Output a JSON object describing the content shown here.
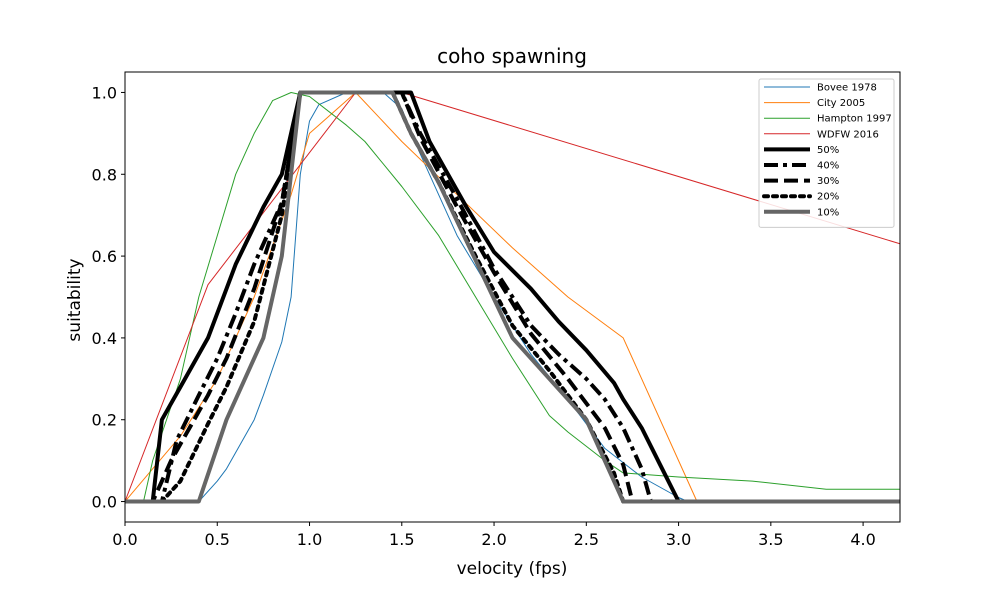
{
  "chart_data": {
    "type": "line",
    "title": "coho spawning",
    "xlabel": "velocity (fps)",
    "ylabel": "suitability",
    "xlim": [
      0,
      4.2
    ],
    "ylim": [
      -0.05,
      1.05
    ],
    "xticks": [
      0.0,
      0.5,
      1.0,
      1.5,
      2.0,
      2.5,
      3.0,
      3.5,
      4.0
    ],
    "xtick_labels": [
      "0.0",
      "0.5",
      "1.0",
      "1.5",
      "2.0",
      "2.5",
      "3.0",
      "3.5",
      "4.0"
    ],
    "yticks": [
      0.0,
      0.2,
      0.4,
      0.6,
      0.8,
      1.0
    ],
    "ytick_labels": [
      "0.0",
      "0.2",
      "0.4",
      "0.6",
      "0.8",
      "1.0"
    ],
    "grid": false,
    "legend_position": "top-right",
    "series": [
      {
        "name": "Bovee 1978",
        "color": "#1f77b4",
        "style": "solid",
        "width": "thin",
        "points": [
          [
            0,
            0
          ],
          [
            0.4,
            0
          ],
          [
            0.5,
            0.05
          ],
          [
            0.55,
            0.08
          ],
          [
            0.7,
            0.2
          ],
          [
            0.75,
            0.26
          ],
          [
            0.85,
            0.39
          ],
          [
            0.9,
            0.5
          ],
          [
            0.95,
            0.8
          ],
          [
            1.0,
            0.93
          ],
          [
            1.05,
            0.97
          ],
          [
            1.2,
            1.0
          ],
          [
            1.4,
            1.0
          ],
          [
            1.5,
            0.96
          ],
          [
            1.6,
            0.85
          ],
          [
            1.8,
            0.65
          ],
          [
            2.0,
            0.5
          ],
          [
            2.2,
            0.36
          ],
          [
            2.4,
            0.25
          ],
          [
            2.6,
            0.13
          ],
          [
            2.8,
            0.06
          ],
          [
            3.0,
            0.01
          ],
          [
            3.05,
            0
          ],
          [
            4.2,
            0
          ]
        ]
      },
      {
        "name": "City 2005",
        "color": "#ff7f0e",
        "style": "solid",
        "width": "thin",
        "points": [
          [
            0,
            0
          ],
          [
            0.3,
            0.16
          ],
          [
            0.5,
            0.3
          ],
          [
            0.7,
            0.5
          ],
          [
            0.9,
            0.75
          ],
          [
            1.0,
            0.9
          ],
          [
            1.25,
            1.0
          ],
          [
            1.5,
            0.88
          ],
          [
            1.8,
            0.75
          ],
          [
            2.1,
            0.62
          ],
          [
            2.4,
            0.5
          ],
          [
            2.7,
            0.4
          ],
          [
            3.1,
            0
          ],
          [
            4.2,
            0
          ]
        ]
      },
      {
        "name": "Hampton 1997",
        "color": "#2ca02c",
        "style": "solid",
        "width": "thin",
        "points": [
          [
            0,
            0
          ],
          [
            0.1,
            0
          ],
          [
            0.15,
            0.1
          ],
          [
            0.3,
            0.3
          ],
          [
            0.4,
            0.5
          ],
          [
            0.5,
            0.65
          ],
          [
            0.6,
            0.8
          ],
          [
            0.7,
            0.9
          ],
          [
            0.8,
            0.98
          ],
          [
            0.9,
            1.0
          ],
          [
            1.0,
            0.99
          ],
          [
            1.2,
            0.92
          ],
          [
            1.3,
            0.88
          ],
          [
            1.5,
            0.77
          ],
          [
            1.7,
            0.65
          ],
          [
            1.9,
            0.5
          ],
          [
            2.1,
            0.35
          ],
          [
            2.3,
            0.21
          ],
          [
            2.4,
            0.17
          ],
          [
            2.6,
            0.1
          ],
          [
            2.7,
            0.07
          ],
          [
            3.0,
            0.06
          ],
          [
            3.4,
            0.05
          ],
          [
            3.8,
            0.03
          ],
          [
            4.2,
            0.03
          ]
        ]
      },
      {
        "name": "WDFW 2016",
        "color": "#d62728",
        "style": "solid",
        "width": "thin",
        "points": [
          [
            0,
            0
          ],
          [
            0.45,
            0.53
          ],
          [
            1.25,
            1.0
          ],
          [
            1.5,
            1.0
          ],
          [
            4.2,
            0.63
          ]
        ]
      },
      {
        "name": "50%",
        "color": "#000000",
        "style": "solid",
        "width": "thick",
        "points": [
          [
            0,
            0
          ],
          [
            0.15,
            0
          ],
          [
            0.2,
            0.2
          ],
          [
            0.3,
            0.28
          ],
          [
            0.45,
            0.4
          ],
          [
            0.6,
            0.58
          ],
          [
            0.75,
            0.72
          ],
          [
            0.85,
            0.8
          ],
          [
            0.95,
            1.0
          ],
          [
            1.55,
            1.0
          ],
          [
            1.65,
            0.88
          ],
          [
            1.85,
            0.72
          ],
          [
            2.0,
            0.61
          ],
          [
            2.2,
            0.52
          ],
          [
            2.35,
            0.44
          ],
          [
            2.5,
            0.37
          ],
          [
            2.65,
            0.29
          ],
          [
            2.7,
            0.25
          ],
          [
            2.8,
            0.18
          ],
          [
            2.9,
            0.09
          ],
          [
            3.0,
            0
          ],
          [
            4.2,
            0
          ]
        ]
      },
      {
        "name": "40%",
        "color": "#000000",
        "style": "dashdot",
        "width": "thick",
        "points": [
          [
            0,
            0
          ],
          [
            0.2,
            0
          ],
          [
            0.28,
            0.15
          ],
          [
            0.4,
            0.26
          ],
          [
            0.5,
            0.35
          ],
          [
            0.6,
            0.46
          ],
          [
            0.7,
            0.58
          ],
          [
            0.85,
            0.73
          ],
          [
            0.95,
            1.0
          ],
          [
            1.5,
            1.0
          ],
          [
            1.6,
            0.9
          ],
          [
            1.8,
            0.74
          ],
          [
            2.0,
            0.57
          ],
          [
            2.2,
            0.43
          ],
          [
            2.35,
            0.36
          ],
          [
            2.5,
            0.3
          ],
          [
            2.6,
            0.25
          ],
          [
            2.7,
            0.18
          ],
          [
            2.8,
            0.08
          ],
          [
            2.85,
            0
          ],
          [
            4.2,
            0
          ]
        ]
      },
      {
        "name": "30%",
        "color": "#000000",
        "style": "dashed",
        "width": "thick",
        "points": [
          [
            0,
            0
          ],
          [
            0.15,
            0
          ],
          [
            0.25,
            0.1
          ],
          [
            0.45,
            0.26
          ],
          [
            0.55,
            0.35
          ],
          [
            0.7,
            0.52
          ],
          [
            0.85,
            0.73
          ],
          [
            0.95,
            1.0
          ],
          [
            1.5,
            1.0
          ],
          [
            1.6,
            0.89
          ],
          [
            1.8,
            0.72
          ],
          [
            2.0,
            0.56
          ],
          [
            2.2,
            0.41
          ],
          [
            2.4,
            0.3
          ],
          [
            2.6,
            0.18
          ],
          [
            2.7,
            0.09
          ],
          [
            2.75,
            0
          ],
          [
            4.2,
            0
          ]
        ]
      },
      {
        "name": "20%",
        "color": "#000000",
        "style": "dotted",
        "width": "thick",
        "points": [
          [
            0,
            0
          ],
          [
            0.2,
            0
          ],
          [
            0.3,
            0.05
          ],
          [
            0.45,
            0.19
          ],
          [
            0.55,
            0.28
          ],
          [
            0.7,
            0.44
          ],
          [
            0.85,
            0.7
          ],
          [
            0.95,
            1.0
          ],
          [
            1.45,
            1.0
          ],
          [
            1.55,
            0.9
          ],
          [
            1.7,
            0.78
          ],
          [
            1.9,
            0.6
          ],
          [
            2.1,
            0.43
          ],
          [
            2.3,
            0.32
          ],
          [
            2.5,
            0.2
          ],
          [
            2.65,
            0.07
          ],
          [
            2.7,
            0
          ],
          [
            4.2,
            0
          ]
        ]
      },
      {
        "name": "10%",
        "color": "#666666",
        "style": "solid",
        "width": "thick",
        "points": [
          [
            0,
            0
          ],
          [
            0.4,
            0
          ],
          [
            0.55,
            0.2
          ],
          [
            0.75,
            0.4
          ],
          [
            0.85,
            0.6
          ],
          [
            0.95,
            1.0
          ],
          [
            1.45,
            1.0
          ],
          [
            1.55,
            0.9
          ],
          [
            1.7,
            0.78
          ],
          [
            1.9,
            0.59
          ],
          [
            2.1,
            0.4
          ],
          [
            2.3,
            0.3
          ],
          [
            2.5,
            0.2
          ],
          [
            2.7,
            0
          ],
          [
            4.2,
            0
          ]
        ]
      }
    ]
  }
}
